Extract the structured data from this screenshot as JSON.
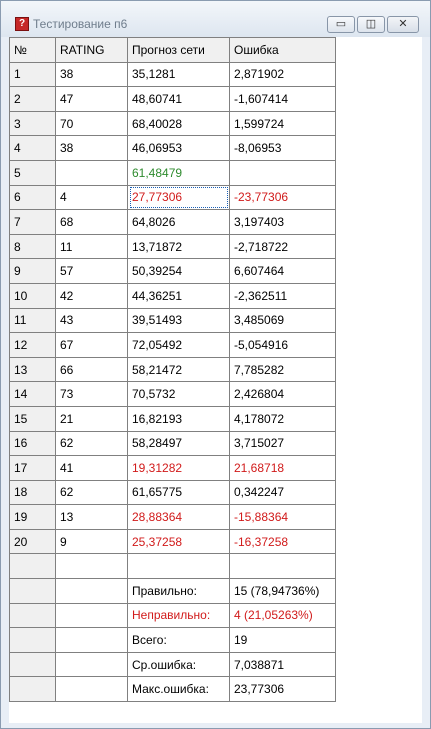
{
  "window": {
    "title": "Тестирование п6",
    "icon": "question-icon",
    "controls": {
      "minimize": "▭",
      "maximize": "◫",
      "close": "✕"
    }
  },
  "colors": {
    "error": "#d11a1a",
    "missing": "#2e8b2e"
  },
  "table": {
    "headers": [
      "№",
      "RATING",
      "Прогноз сети",
      "Ошибка"
    ],
    "rows": [
      {
        "n": "1",
        "rating": "38",
        "forecast": "35,1281",
        "error": "2,871902",
        "style": ""
      },
      {
        "n": "2",
        "rating": "47",
        "forecast": "48,60741",
        "error": "-1,607414",
        "style": ""
      },
      {
        "n": "3",
        "rating": "70",
        "forecast": "68,40028",
        "error": "1,599724",
        "style": ""
      },
      {
        "n": "4",
        "rating": "38",
        "forecast": "46,06953",
        "error": "-8,06953",
        "style": ""
      },
      {
        "n": "5",
        "rating": "",
        "forecast": "61,48479",
        "error": "",
        "style": "green"
      },
      {
        "n": "6",
        "rating": "4",
        "forecast": "27,77306",
        "error": "-23,77306",
        "style": "red"
      },
      {
        "n": "7",
        "rating": "68",
        "forecast": "64,8026",
        "error": "3,197403",
        "style": ""
      },
      {
        "n": "8",
        "rating": "11",
        "forecast": "13,71872",
        "error": "-2,718722",
        "style": ""
      },
      {
        "n": "9",
        "rating": "57",
        "forecast": "50,39254",
        "error": "6,607464",
        "style": ""
      },
      {
        "n": "10",
        "rating": "42",
        "forecast": "44,36251",
        "error": "-2,362511",
        "style": ""
      },
      {
        "n": "11",
        "rating": "43",
        "forecast": "39,51493",
        "error": "3,485069",
        "style": ""
      },
      {
        "n": "12",
        "rating": "67",
        "forecast": "72,05492",
        "error": "-5,054916",
        "style": ""
      },
      {
        "n": "13",
        "rating": "66",
        "forecast": "58,21472",
        "error": "7,785282",
        "style": ""
      },
      {
        "n": "14",
        "rating": "73",
        "forecast": "70,5732",
        "error": "2,426804",
        "style": ""
      },
      {
        "n": "15",
        "rating": "21",
        "forecast": "16,82193",
        "error": "4,178072",
        "style": ""
      },
      {
        "n": "16",
        "rating": "62",
        "forecast": "58,28497",
        "error": "3,715027",
        "style": ""
      },
      {
        "n": "17",
        "rating": "41",
        "forecast": "19,31282",
        "error": "21,68718",
        "style": "red"
      },
      {
        "n": "18",
        "rating": "62",
        "forecast": "61,65775",
        "error": "0,342247",
        "style": ""
      },
      {
        "n": "19",
        "rating": "13",
        "forecast": "28,88364",
        "error": "-15,88364",
        "style": "red"
      },
      {
        "n": "20",
        "rating": "9",
        "forecast": "25,37258",
        "error": "-16,37258",
        "style": "red"
      }
    ],
    "summary": [
      {
        "label": "Правильно:",
        "value": "15 (78,94736%)",
        "style": ""
      },
      {
        "label": "Неправильно:",
        "value": "4 (21,05263%)",
        "style": "red"
      },
      {
        "label": "Всего:",
        "value": "19",
        "style": ""
      },
      {
        "label": "Ср.ошибка:",
        "value": "7,038871",
        "style": ""
      },
      {
        "label": "Макс.ошибка:",
        "value": "23,77306",
        "style": ""
      }
    ]
  }
}
